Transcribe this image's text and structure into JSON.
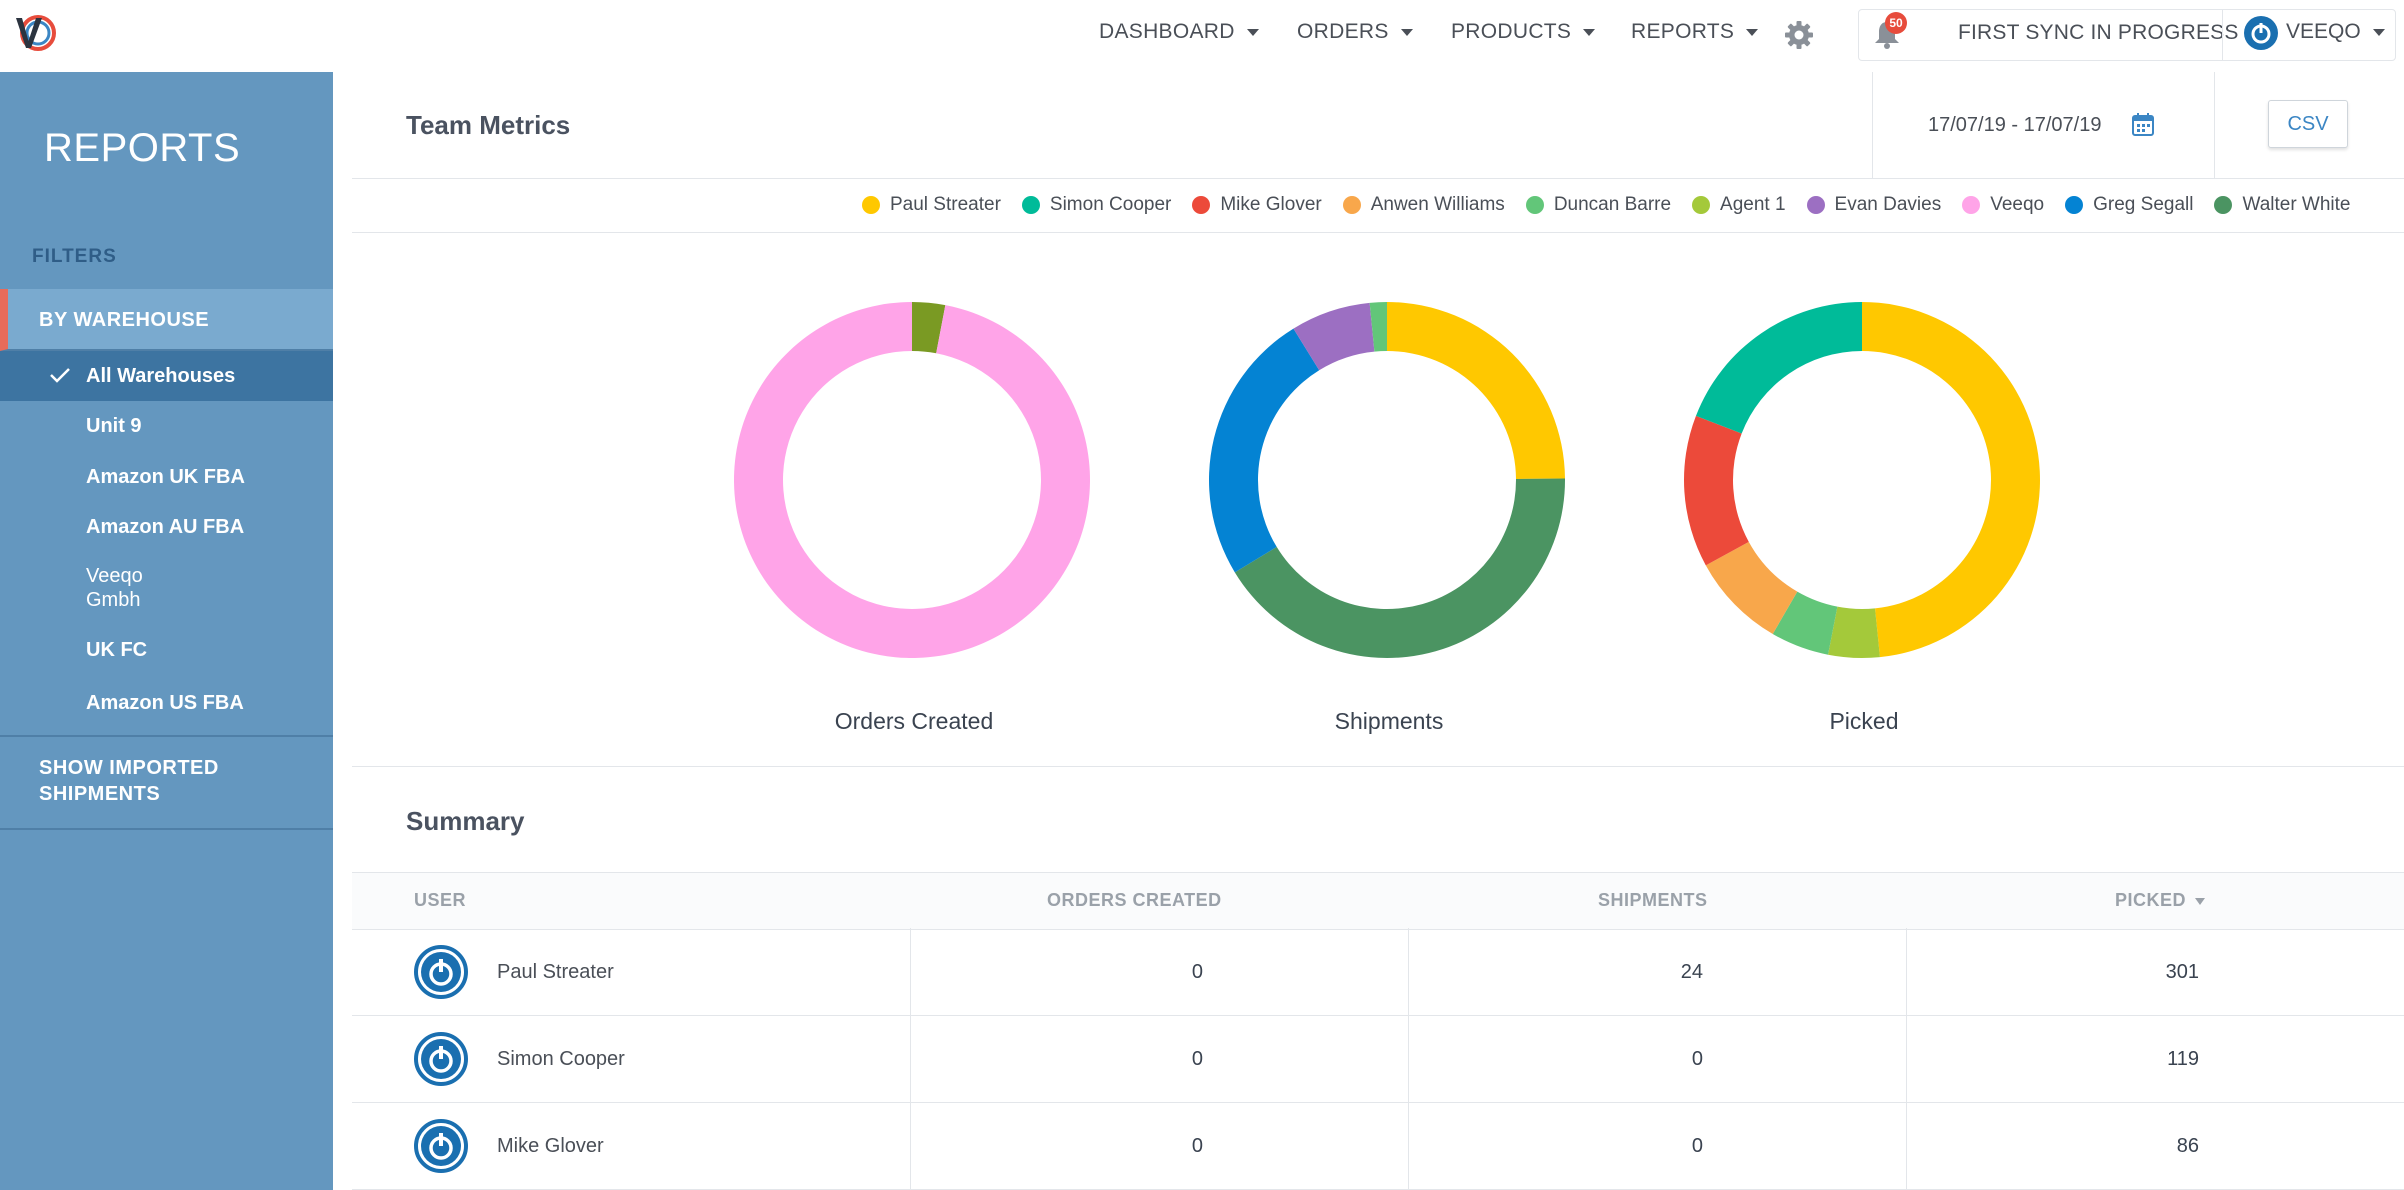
{
  "topbar": {
    "nav": [
      {
        "label": "DASHBOARD"
      },
      {
        "label": "ORDERS"
      },
      {
        "label": "PRODUCTS"
      },
      {
        "label": "REPORTS"
      }
    ],
    "notifications_count": "50",
    "sync_status": "FIRST SYNC IN PROGRESS",
    "account_name": "VEEQO"
  },
  "sidebar": {
    "title": "REPORTS",
    "filters_label": "FILTERS",
    "group_label": "BY WAREHOUSE",
    "warehouses": [
      {
        "label": "All Warehouses",
        "selected": true
      },
      {
        "label": "Unit 9"
      },
      {
        "label": "Amazon UK FBA"
      },
      {
        "label": "Amazon AU FBA"
      },
      {
        "label": "Veeqo\nGmbh"
      },
      {
        "label": "UK FC"
      },
      {
        "label": "Amazon US FBA"
      }
    ],
    "show_imported": "SHOW IMPORTED SHIPMENTS"
  },
  "main": {
    "title": "Team Metrics",
    "date_range": "17/07/19 - 17/07/19",
    "csv_label": "CSV",
    "legend": [
      {
        "name": "Paul Streater",
        "color": "#ffc800"
      },
      {
        "name": "Simon Cooper",
        "color": "#00bb99"
      },
      {
        "name": "Mike Glover",
        "color": "#ec4a3a"
      },
      {
        "name": "Anwen Williams",
        "color": "#f8a74b"
      },
      {
        "name": "Duncan Barre",
        "color": "#62c679"
      },
      {
        "name": "Agent 1",
        "color": "#a4c93a"
      },
      {
        "name": "Evan Davies",
        "color": "#9c6fc2"
      },
      {
        "name": "Veeqo",
        "color": "#ffa4e8"
      },
      {
        "name": "Greg Segall",
        "color": "#0483d3"
      },
      {
        "name": "Walter White",
        "color": "#4b9462"
      }
    ],
    "summary_title": "Summary",
    "table": {
      "columns": [
        "USER",
        "ORDERS CREATED",
        "SHIPMENTS",
        "PICKED"
      ],
      "rows": [
        {
          "user": "Paul Streater",
          "orders_created": "0",
          "shipments": "24",
          "picked": "301"
        },
        {
          "user": "Simon Cooper",
          "orders_created": "0",
          "shipments": "0",
          "picked": "119"
        },
        {
          "user": "Mike Glover",
          "orders_created": "0",
          "shipments": "0",
          "picked": "86"
        }
      ]
    }
  },
  "chart_data": [
    {
      "type": "pie",
      "title": "Orders Created",
      "donut": true,
      "slices": [
        {
          "name": "Agent 1",
          "value": 3,
          "color": "#7a9a23"
        },
        {
          "name": "Veeqo",
          "value": 97,
          "color": "#ffa4e8"
        }
      ]
    },
    {
      "type": "pie",
      "title": "Shipments",
      "donut": true,
      "slices": [
        {
          "name": "Paul Streater",
          "value": 24,
          "color": "#ffc800"
        },
        {
          "name": "Walter White",
          "value": 40,
          "color": "#4b9462"
        },
        {
          "name": "Greg Segall",
          "value": 24,
          "color": "#0483d3"
        },
        {
          "name": "Evan Davies",
          "value": 7,
          "color": "#9c6fc2"
        },
        {
          "name": "Duncan Barre",
          "value": 1.5,
          "color": "#62c679"
        }
      ]
    },
    {
      "type": "pie",
      "title": "Picked",
      "donut": true,
      "slices": [
        {
          "name": "Paul Streater",
          "value": 301,
          "color": "#ffc800"
        },
        {
          "name": "Agent 1",
          "value": 29,
          "color": "#a4c93a"
        },
        {
          "name": "Duncan Barre",
          "value": 33,
          "color": "#62c679"
        },
        {
          "name": "Anwen Williams",
          "value": 54,
          "color": "#f8a74b"
        },
        {
          "name": "Mike Glover",
          "value": 86,
          "color": "#ec4a3a"
        },
        {
          "name": "Simon Cooper",
          "value": 119,
          "color": "#00bb99"
        }
      ]
    }
  ]
}
